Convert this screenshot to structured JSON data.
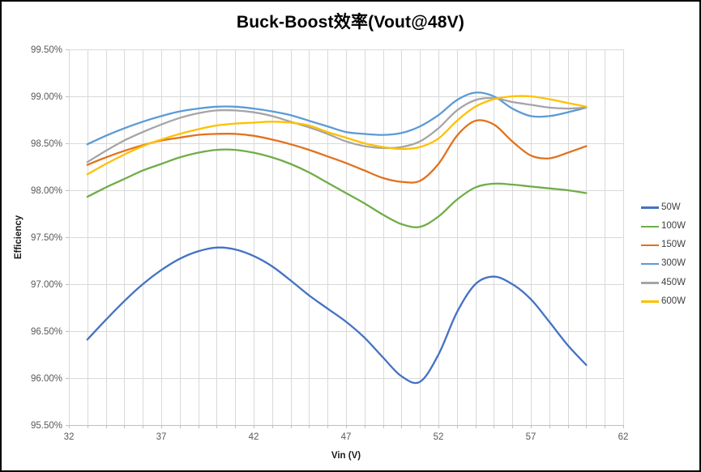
{
  "page": {
    "background": "#ffffff",
    "border_color": "#000000"
  },
  "styles": {
    "gridline_color": "#d9d9d9",
    "axis_line_color": "#bfbfbf",
    "tick_label_color": "#595959",
    "title_color": "#000000"
  },
  "chart_data": {
    "type": "line",
    "title": "Buck-Boost效率(Vout@48V)",
    "xlabel": "Vin (V)",
    "ylabel": "Efficiency",
    "xlim": [
      32,
      62
    ],
    "ylim_pct": [
      95.5,
      99.5
    ],
    "x_major_ticks": [
      32,
      37,
      42,
      47,
      52,
      57,
      62
    ],
    "x_minor_step": 1,
    "y_ticks_pct": [
      95.5,
      96.0,
      96.5,
      97.0,
      97.5,
      98.0,
      98.5,
      99.0,
      99.5
    ],
    "y_tick_labels": [
      "95.50%",
      "96.00%",
      "96.50%",
      "97.00%",
      "97.50%",
      "98.00%",
      "98.50%",
      "99.00%",
      "99.50%"
    ],
    "grid": true,
    "legend_position": "right",
    "x": [
      33,
      34,
      35,
      36,
      37,
      38,
      39,
      40,
      41,
      42,
      43,
      44,
      45,
      46,
      47,
      48,
      49,
      50,
      51,
      52,
      53,
      54,
      55,
      56,
      57,
      58,
      59,
      60
    ],
    "series": [
      {
        "name": "50W",
        "color": "#4472c4",
        "values": [
          96.41,
          96.62,
          96.82,
          97.0,
          97.15,
          97.27,
          97.35,
          97.39,
          97.37,
          97.3,
          97.19,
          97.04,
          96.88,
          96.74,
          96.6,
          96.43,
          96.22,
          96.02,
          95.96,
          96.25,
          96.7,
          97.0,
          97.08,
          97.0,
          96.84,
          96.6,
          96.35,
          96.14
        ]
      },
      {
        "name": "100W",
        "color": "#70ad47",
        "values": [
          97.93,
          98.03,
          98.12,
          98.21,
          98.28,
          98.35,
          98.4,
          98.43,
          98.43,
          98.4,
          98.35,
          98.28,
          98.19,
          98.08,
          97.97,
          97.86,
          97.74,
          97.64,
          97.61,
          97.72,
          97.9,
          98.03,
          98.07,
          98.06,
          98.04,
          98.02,
          98.0,
          97.97
        ]
      },
      {
        "name": "150W",
        "color": "#e2711d",
        "values": [
          98.27,
          98.35,
          98.42,
          98.48,
          98.53,
          98.56,
          98.59,
          98.6,
          98.6,
          98.58,
          98.54,
          98.49,
          98.43,
          98.36,
          98.29,
          98.21,
          98.13,
          98.09,
          98.1,
          98.28,
          98.58,
          98.74,
          98.7,
          98.52,
          98.37,
          98.34,
          98.4,
          98.47
        ]
      },
      {
        "name": "300W",
        "color": "#5b9bd5",
        "values": [
          98.49,
          98.58,
          98.66,
          98.73,
          98.79,
          98.84,
          98.87,
          98.89,
          98.89,
          98.87,
          98.84,
          98.8,
          98.74,
          98.68,
          98.62,
          98.6,
          98.59,
          98.61,
          98.68,
          98.8,
          98.96,
          99.04,
          99.0,
          98.87,
          98.79,
          98.79,
          98.83,
          98.88
        ]
      },
      {
        "name": "450W",
        "color": "#a5a5a5",
        "values": [
          98.3,
          98.42,
          98.53,
          98.62,
          98.7,
          98.77,
          98.82,
          98.85,
          98.85,
          98.83,
          98.79,
          98.73,
          98.67,
          98.6,
          98.52,
          98.47,
          98.45,
          98.46,
          98.52,
          98.66,
          98.85,
          98.96,
          98.98,
          98.94,
          98.91,
          98.88,
          98.87,
          98.88
        ]
      },
      {
        "name": "600W",
        "color": "#ffc000",
        "values": [
          98.17,
          98.28,
          98.38,
          98.47,
          98.54,
          98.6,
          98.65,
          98.69,
          98.71,
          98.72,
          98.73,
          98.72,
          98.69,
          98.62,
          98.56,
          98.5,
          98.46,
          98.44,
          98.46,
          98.55,
          98.74,
          98.89,
          98.97,
          99.0,
          99.0,
          98.97,
          98.93,
          98.89
        ]
      }
    ]
  }
}
